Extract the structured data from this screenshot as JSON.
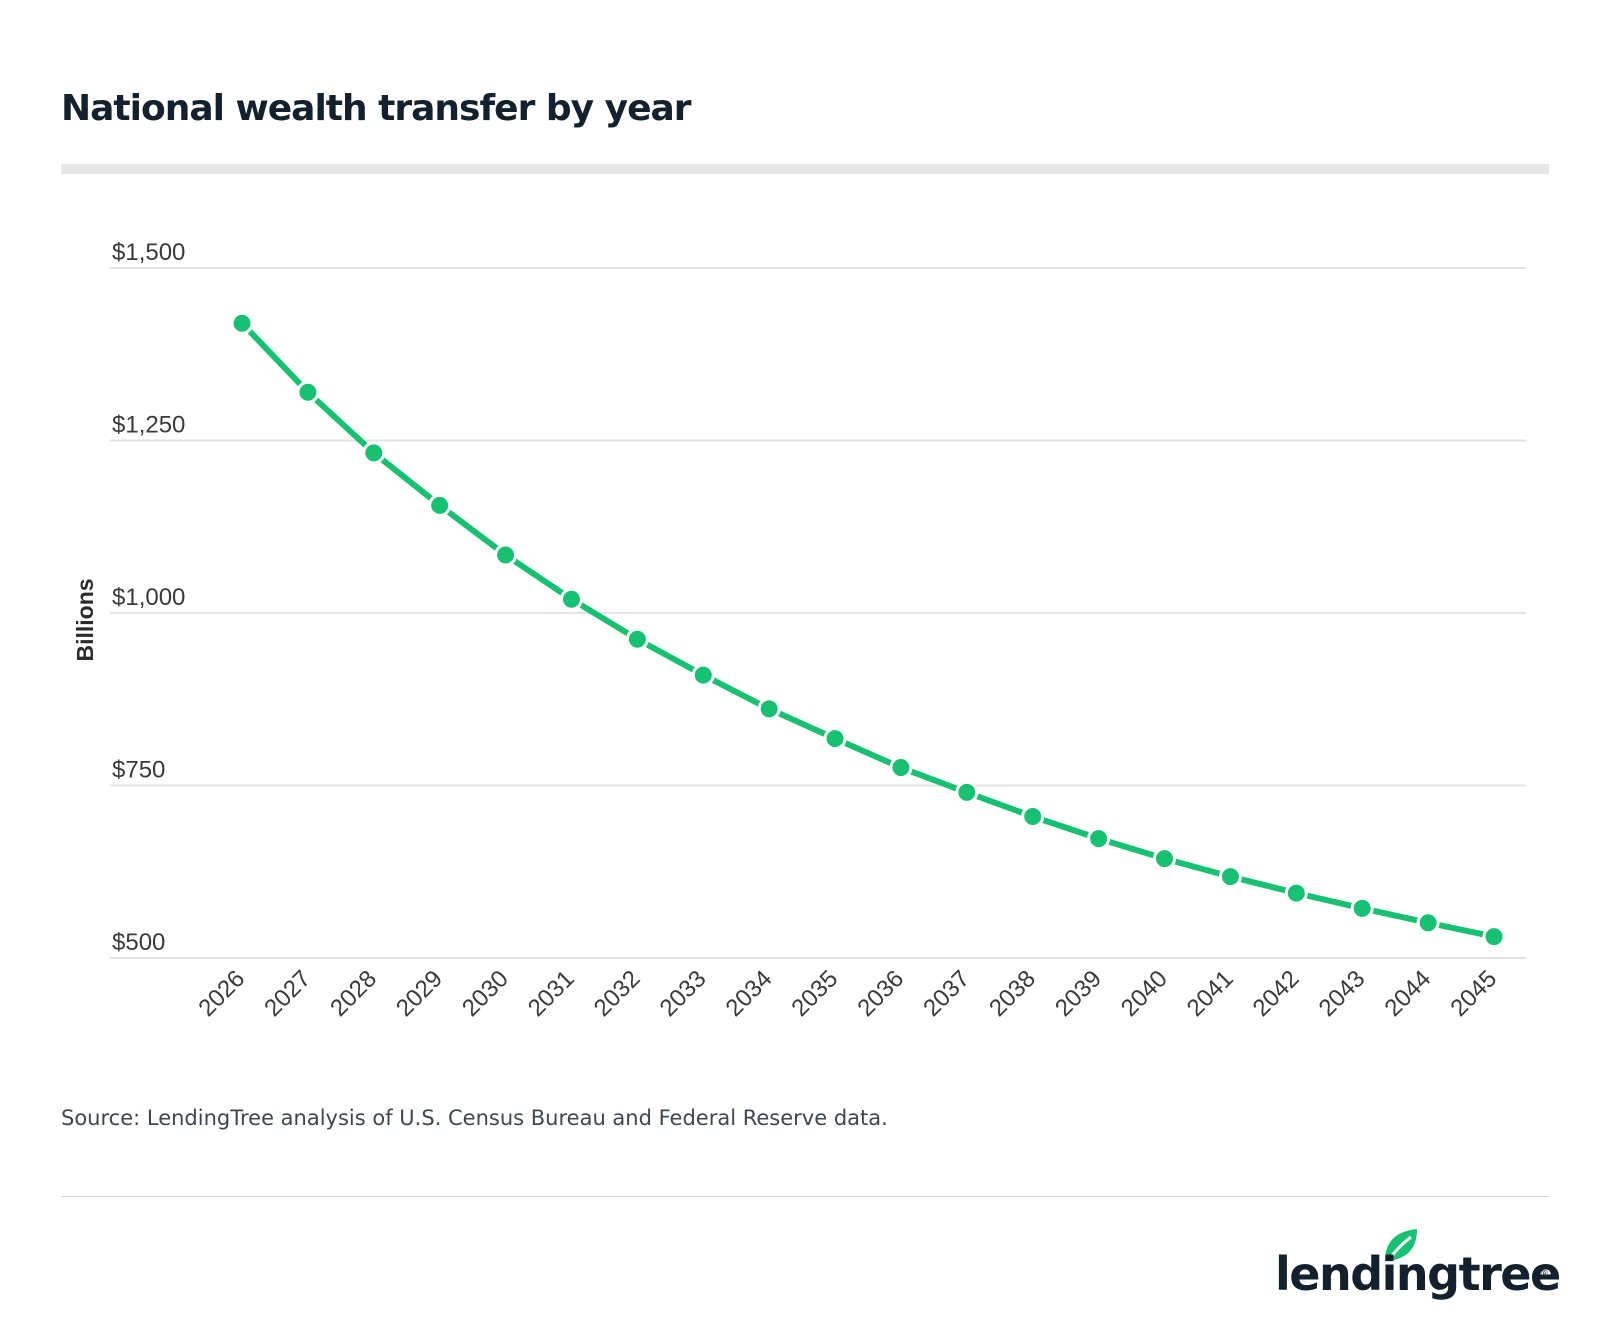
{
  "title": "National wealth transfer by year",
  "source": "Source: LendingTree analysis of U.S. Census Bureau and Federal Reserve data.",
  "logo": {
    "text": "lendingtree",
    "mark": "®"
  },
  "colors": {
    "line": "#18c172",
    "grid": "#e3e3e3",
    "tick_text": "#3a3a3a",
    "title": "#13202e"
  },
  "chart_data": {
    "type": "line",
    "ylabel": "Billions",
    "xlabel": "",
    "ylim": [
      500,
      1500
    ],
    "yticks": [
      500,
      750,
      1000,
      1250,
      1500
    ],
    "ytick_labels": [
      "$500",
      "$750",
      "$1,000",
      "$1,250",
      "$1,500"
    ],
    "grid": true,
    "legend": "none",
    "categories": [
      "2026",
      "2027",
      "2028",
      "2029",
      "2030",
      "2031",
      "2032",
      "2033",
      "2034",
      "2035",
      "2036",
      "2037",
      "2038",
      "2039",
      "2040",
      "2041",
      "2042",
      "2043",
      "2044",
      "2045"
    ],
    "series": [
      {
        "values": [
          1420,
          1320,
          1232,
          1156,
          1084,
          1020,
          962,
          910,
          861,
          818,
          776,
          740,
          705,
          673,
          644,
          618,
          594,
          572,
          551,
          531
        ]
      }
    ]
  }
}
